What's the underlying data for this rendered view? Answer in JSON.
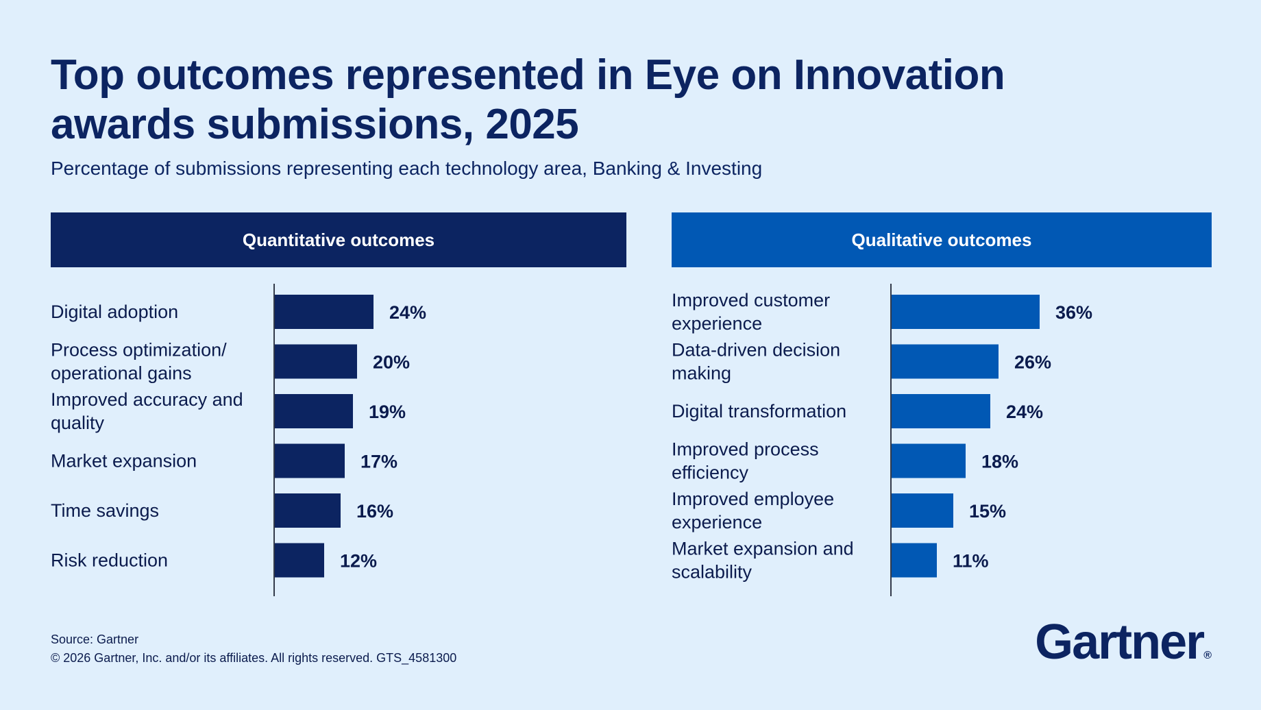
{
  "title": "Top outcomes represented in Eye on Innovation awards submissions, 2025",
  "subtitle": "Percentage of submissions representing each technology area, Banking & Investing",
  "colors": {
    "quantitative": "#0c2461",
    "qualitative": "#0158b4",
    "background": "#e0effc"
  },
  "chart_data": [
    {
      "type": "bar",
      "orientation": "horizontal",
      "title": "Quantitative outcomes",
      "color": "#0c2461",
      "categories": [
        [
          "Digital adoption"
        ],
        [
          "Process optimization/",
          "operational gains"
        ],
        [
          "Improved accuracy and",
          "quality"
        ],
        [
          "Market expansion"
        ],
        [
          "Time savings"
        ],
        [
          "Risk reduction"
        ]
      ],
      "values": [
        24,
        20,
        19,
        17,
        16,
        12
      ],
      "value_labels": [
        "24%",
        "20%",
        "19%",
        "17%",
        "16%",
        "12%"
      ],
      "unit": "%",
      "xlim": [
        0,
        36
      ]
    },
    {
      "type": "bar",
      "orientation": "horizontal",
      "title": "Qualitative outcomes",
      "color": "#0158b4",
      "categories": [
        [
          "Improved customer",
          "experience"
        ],
        [
          "Data-driven decision",
          "making"
        ],
        [
          "Digital transformation"
        ],
        [
          "Improved process",
          "efficiency"
        ],
        [
          "Improved employee",
          "experience"
        ],
        [
          "Market expansion and",
          "scalability"
        ]
      ],
      "values": [
        36,
        26,
        24,
        18,
        15,
        11
      ],
      "value_labels": [
        "36%",
        "26%",
        "24%",
        "18%",
        "15%",
        "11%"
      ],
      "unit": "%",
      "xlim": [
        0,
        36
      ]
    }
  ],
  "footer": {
    "source": "Source: Gartner",
    "copyright": "© 2026 Gartner, Inc. and/or its affiliates. All rights reserved. GTS_4581300"
  },
  "logo": {
    "text": "Gartner",
    "mark": "®"
  }
}
